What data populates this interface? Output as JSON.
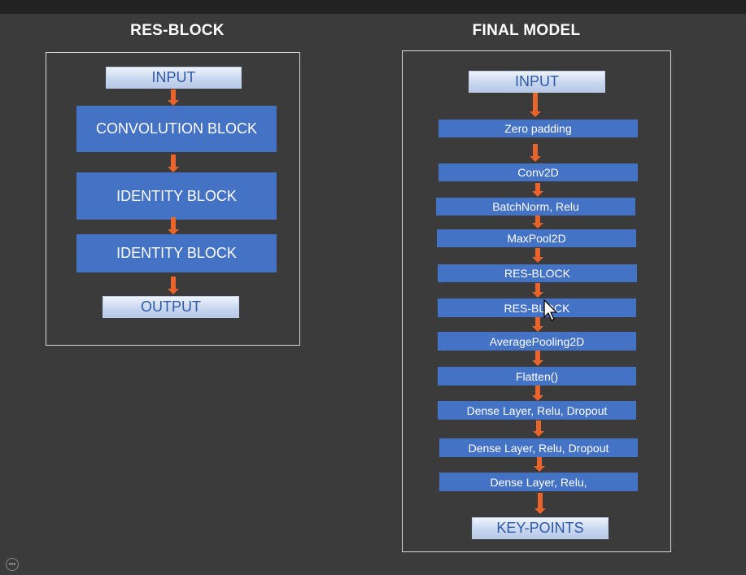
{
  "res_block": {
    "title": "RES-BLOCK",
    "input": "INPUT",
    "steps": [
      "CONVOLUTION BLOCK",
      "IDENTITY BLOCK",
      "IDENTITY BLOCK"
    ],
    "output": "OUTPUT"
  },
  "final_model": {
    "title": "FINAL  MODEL",
    "input": "INPUT",
    "layers": [
      "Zero padding",
      "Conv2D",
      "BatchNorm, Relu",
      "MaxPool2D",
      "RES-BLOCK",
      "RES-BLOCK",
      "AveragePooling2D",
      "Flatten()",
      "Dense Layer, Relu, Dropout",
      "Dense Layer, Relu, Dropout",
      "Dense Layer, Relu,"
    ],
    "output": "KEY-POINTS"
  },
  "colors": {
    "background": "#3b3b3b",
    "block_fill": "#4472c4",
    "arrow": "#e8642b",
    "io_text": "#2f5aa6"
  },
  "icons": [
    "mouse-cursor-icon",
    "more-options-icon"
  ]
}
